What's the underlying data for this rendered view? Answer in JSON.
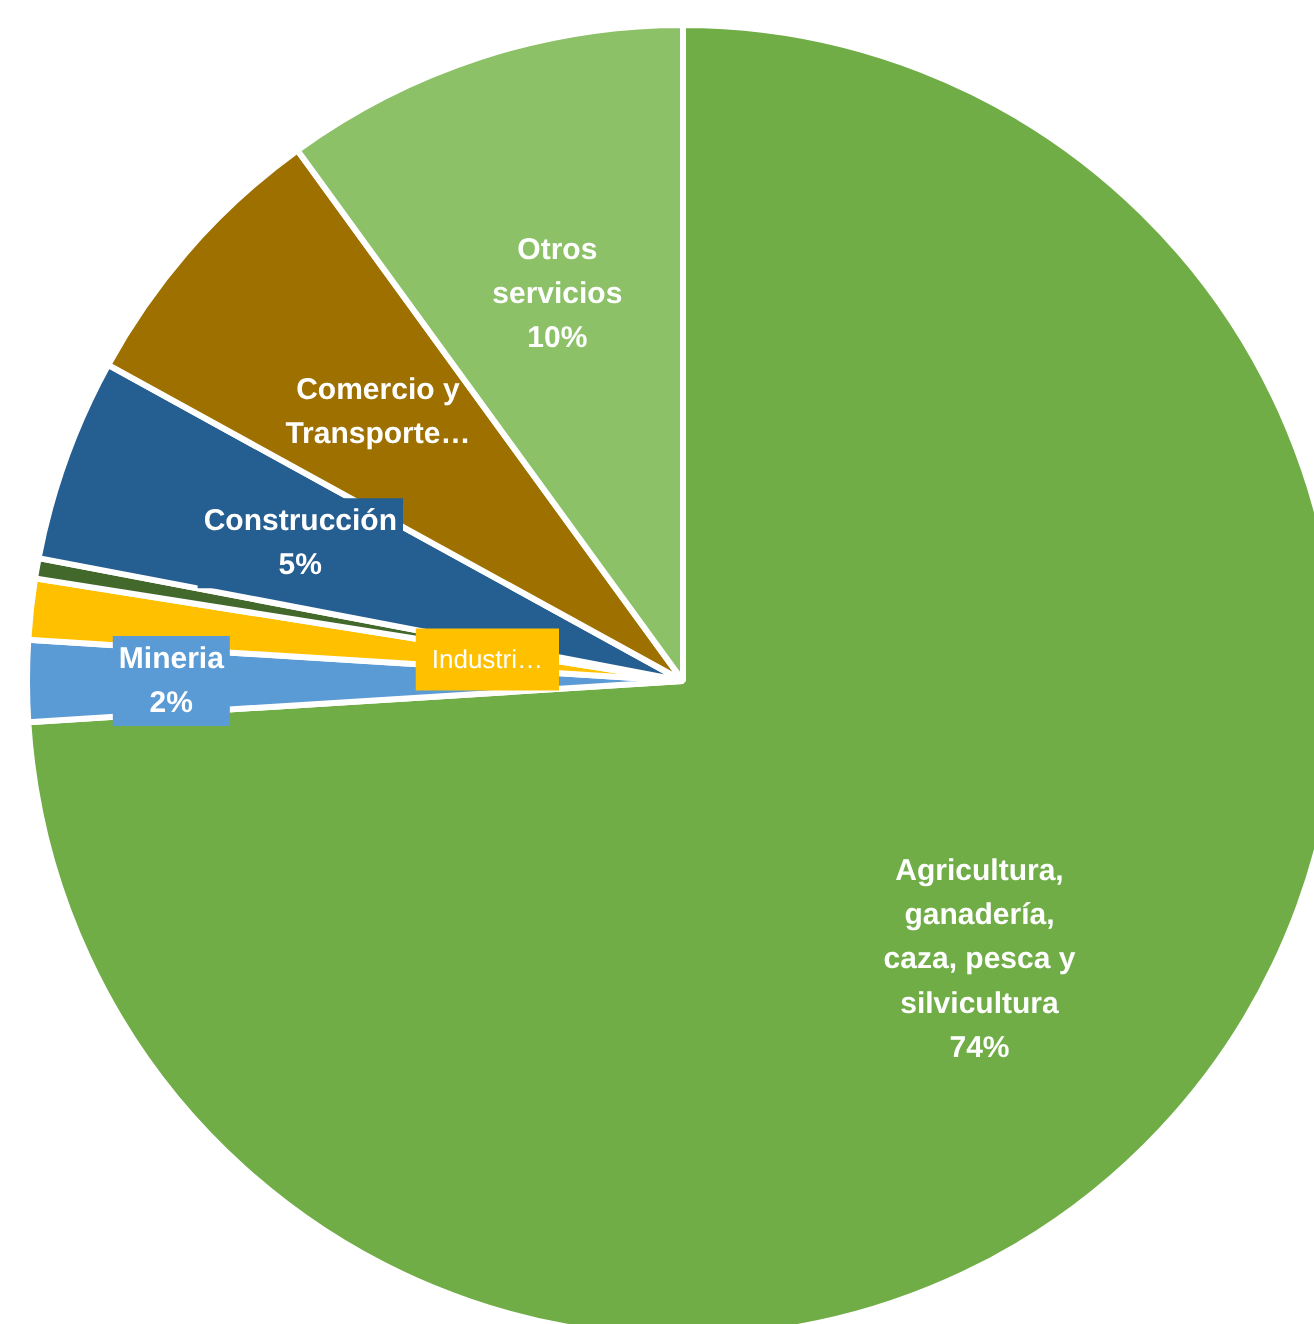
{
  "chart_data": {
    "type": "pie",
    "categories": [
      "Agricultura, ganadería, caza, pesca y silvicultura",
      "Mineria",
      "Industri…",
      null,
      "Construcción",
      "Comercio y Transporte…",
      "Otros servicios"
    ],
    "values": [
      74,
      2,
      1.5,
      0.5,
      5,
      7,
      10
    ],
    "colors": [
      "#70ad47",
      "#5b9bd5",
      "#ffc000",
      "#43682b",
      "#255e91",
      "#9e7000",
      "#8cc168"
    ],
    "value_labels": [
      "74%",
      "2%",
      null,
      null,
      "5%",
      null,
      "10%"
    ]
  }
}
